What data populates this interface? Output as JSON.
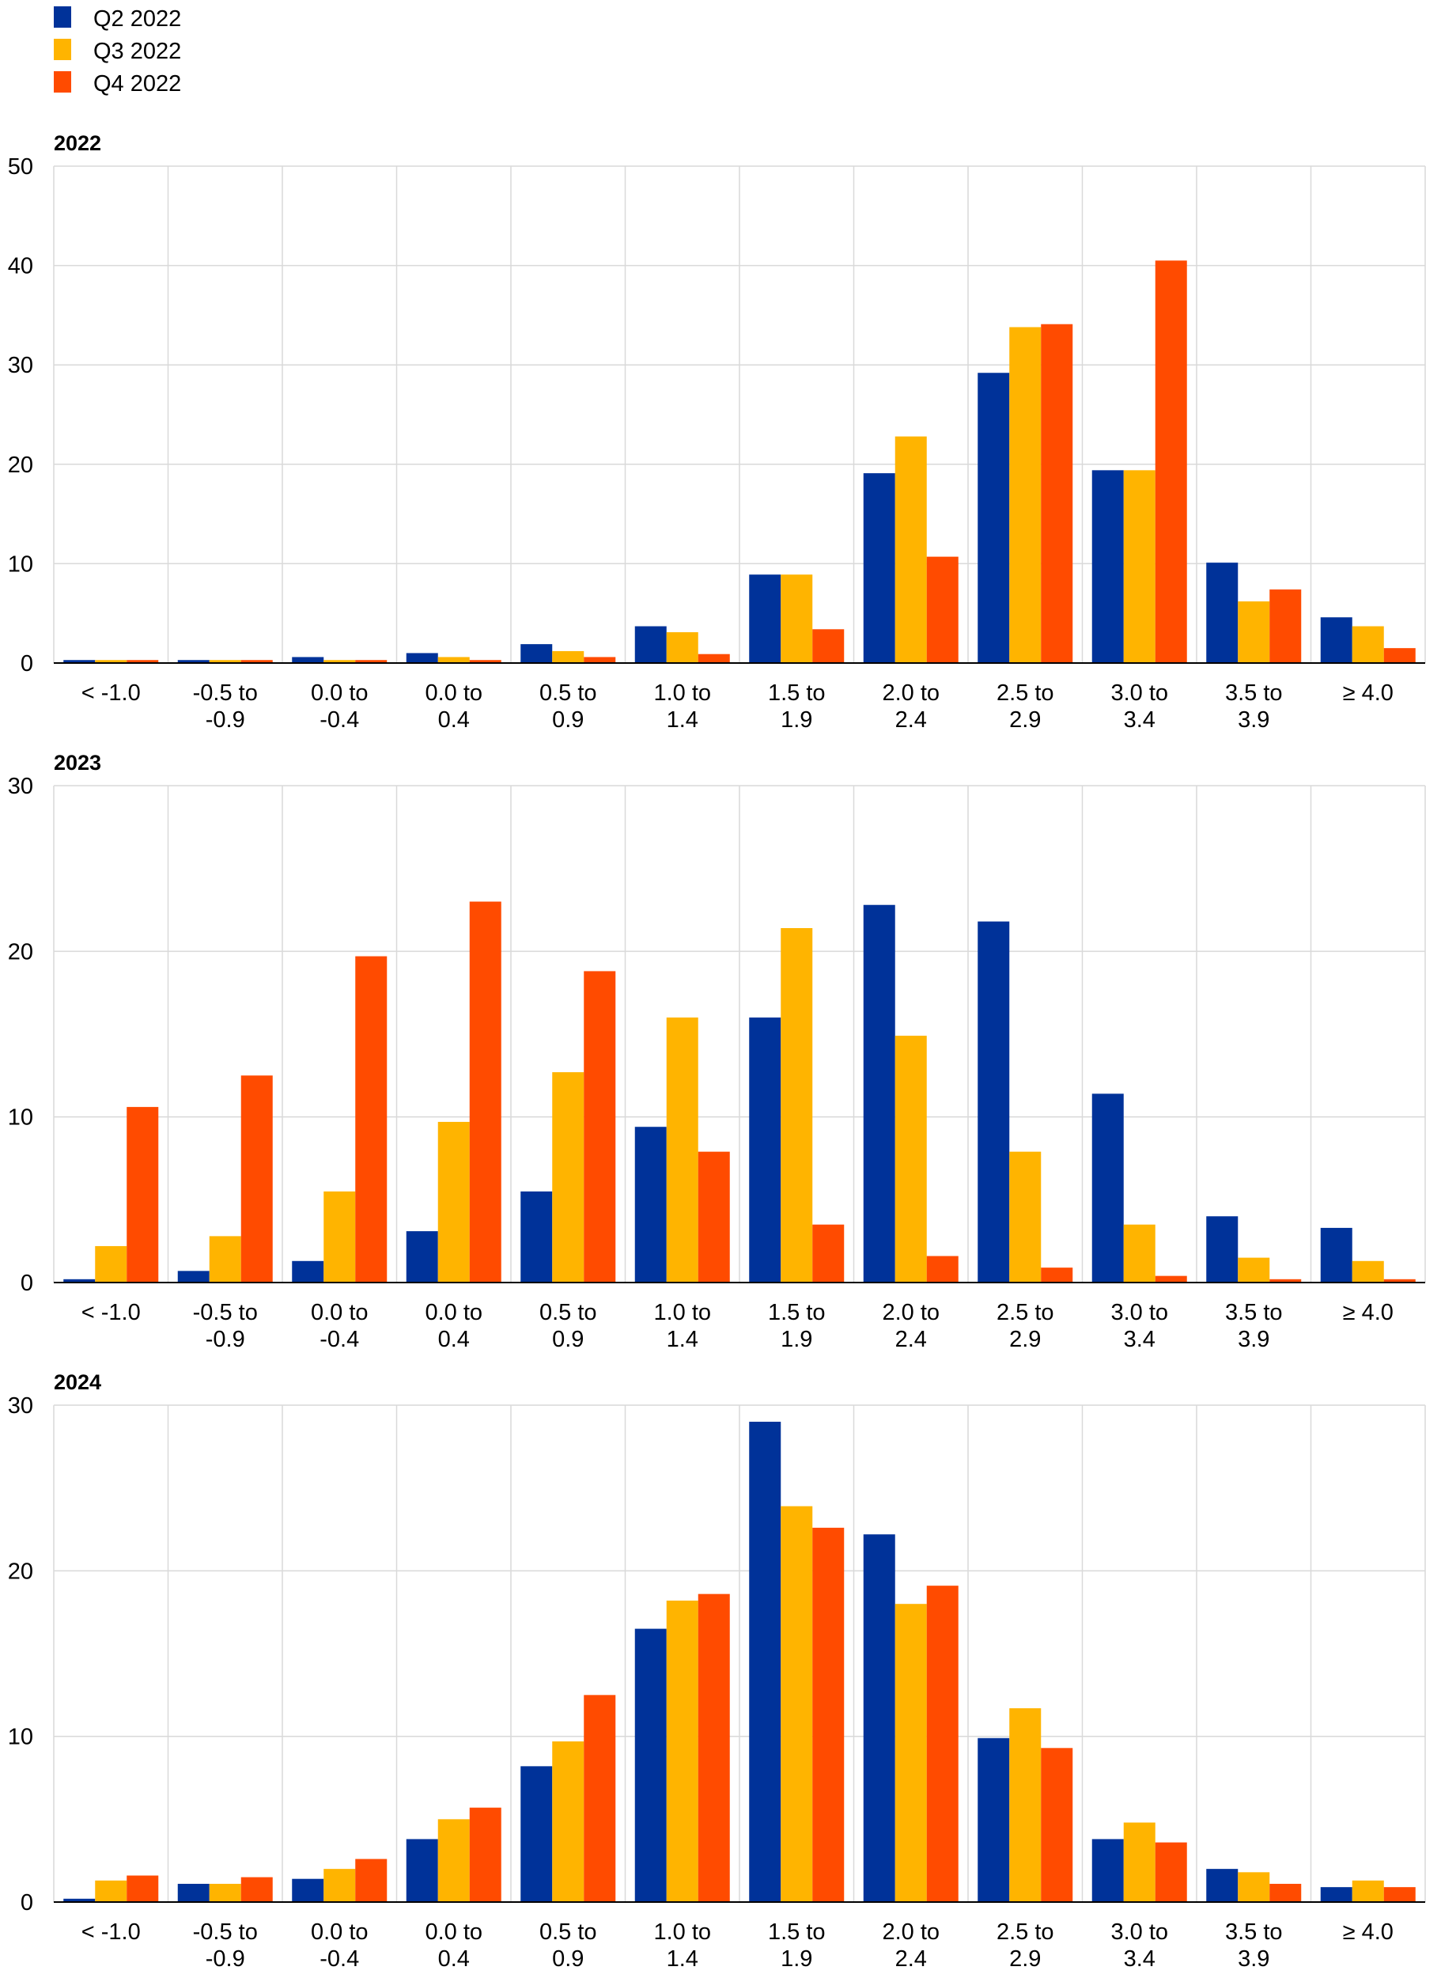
{
  "colors": {
    "q2": "#003299",
    "q3": "#FFB400",
    "q4": "#FF4B00",
    "grid": "#D9D9D9",
    "axis": "#000000"
  },
  "legend": [
    "Q2 2022",
    "Q3 2022",
    "Q4 2022"
  ],
  "chart_data": [
    {
      "type": "bar",
      "title": "2022",
      "categories": [
        [
          "< -1.0"
        ],
        [
          "-0.5 to",
          "-0.9"
        ],
        [
          "0.0 to",
          "-0.4"
        ],
        [
          "0.0 to",
          "0.4"
        ],
        [
          "0.5 to",
          "0.9"
        ],
        [
          "1.0 to",
          "1.4"
        ],
        [
          "1.5 to",
          "1.9"
        ],
        [
          "2.0 to",
          "2.4"
        ],
        [
          "2.5 to",
          "2.9"
        ],
        [
          "3.0 to",
          "3.4"
        ],
        [
          "3.5 to",
          "3.9"
        ],
        [
          "≥ 4.0"
        ]
      ],
      "ylim": [
        0,
        50
      ],
      "yticks": [
        0,
        10,
        20,
        30,
        40,
        50
      ],
      "series": [
        {
          "name": "Q2 2022",
          "color": "#003299",
          "values": [
            0.3,
            0.3,
            0.6,
            1.0,
            1.9,
            3.7,
            8.9,
            19.1,
            29.2,
            19.4,
            10.1,
            4.6
          ]
        },
        {
          "name": "Q3 2022",
          "color": "#FFB400",
          "values": [
            0.3,
            0.3,
            0.3,
            0.6,
            1.2,
            3.1,
            8.9,
            22.8,
            33.8,
            19.4,
            6.2,
            3.7
          ]
        },
        {
          "name": "Q4 2022",
          "color": "#FF4B00",
          "values": [
            0.3,
            0.3,
            0.3,
            0.3,
            0.6,
            0.9,
            3.4,
            10.7,
            34.1,
            40.5,
            7.4,
            1.5
          ]
        }
      ],
      "grid": true,
      "legend_position": "top-left"
    },
    {
      "type": "bar",
      "title": "2023",
      "categories": [
        [
          "< -1.0"
        ],
        [
          "-0.5 to",
          "-0.9"
        ],
        [
          "0.0 to",
          "-0.4"
        ],
        [
          "0.0 to",
          "0.4"
        ],
        [
          "0.5 to",
          "0.9"
        ],
        [
          "1.0 to",
          "1.4"
        ],
        [
          "1.5 to",
          "1.9"
        ],
        [
          "2.0 to",
          "2.4"
        ],
        [
          "2.5 to",
          "2.9"
        ],
        [
          "3.0 to",
          "3.4"
        ],
        [
          "3.5 to",
          "3.9"
        ],
        [
          "≥ 4.0"
        ]
      ],
      "ylim": [
        0,
        30
      ],
      "yticks": [
        0,
        10,
        20,
        30
      ],
      "series": [
        {
          "name": "Q2 2022",
          "color": "#003299",
          "values": [
            0.2,
            0.7,
            1.3,
            3.1,
            5.5,
            9.4,
            16.0,
            22.8,
            21.8,
            11.4,
            4.0,
            3.3
          ]
        },
        {
          "name": "Q3 2022",
          "color": "#FFB400",
          "values": [
            2.2,
            2.8,
            5.5,
            9.7,
            12.7,
            16.0,
            21.4,
            14.9,
            7.9,
            3.5,
            1.5,
            1.3
          ]
        },
        {
          "name": "Q4 2022",
          "color": "#FF4B00",
          "values": [
            10.6,
            12.5,
            19.7,
            23.0,
            18.8,
            7.9,
            3.5,
            1.6,
            0.9,
            0.4,
            0.2,
            0.2
          ]
        }
      ],
      "grid": true
    },
    {
      "type": "bar",
      "title": "2024",
      "categories": [
        [
          "< -1.0"
        ],
        [
          "-0.5 to",
          "-0.9"
        ],
        [
          "0.0 to",
          "-0.4"
        ],
        [
          "0.0 to",
          "0.4"
        ],
        [
          "0.5 to",
          "0.9"
        ],
        [
          "1.0 to",
          "1.4"
        ],
        [
          "1.5 to",
          "1.9"
        ],
        [
          "2.0 to",
          "2.4"
        ],
        [
          "2.5 to",
          "2.9"
        ],
        [
          "3.0 to",
          "3.4"
        ],
        [
          "3.5 to",
          "3.9"
        ],
        [
          "≥ 4.0"
        ]
      ],
      "ylim": [
        0,
        30
      ],
      "yticks": [
        0,
        10,
        20,
        30
      ],
      "series": [
        {
          "name": "Q2 2022",
          "color": "#003299",
          "values": [
            0.2,
            1.1,
            1.4,
            3.8,
            8.2,
            16.5,
            29.0,
            22.2,
            9.9,
            3.8,
            2.0,
            0.9
          ]
        },
        {
          "name": "Q3 2022",
          "color": "#FFB400",
          "values": [
            1.3,
            1.1,
            2.0,
            5.0,
            9.7,
            18.2,
            23.9,
            18.0,
            11.7,
            4.8,
            1.8,
            1.3
          ]
        },
        {
          "name": "Q4 2022",
          "color": "#FF4B00",
          "values": [
            1.6,
            1.5,
            2.6,
            5.7,
            12.5,
            18.6,
            22.6,
            19.1,
            9.3,
            3.6,
            1.1,
            0.9
          ]
        }
      ],
      "grid": true
    }
  ]
}
